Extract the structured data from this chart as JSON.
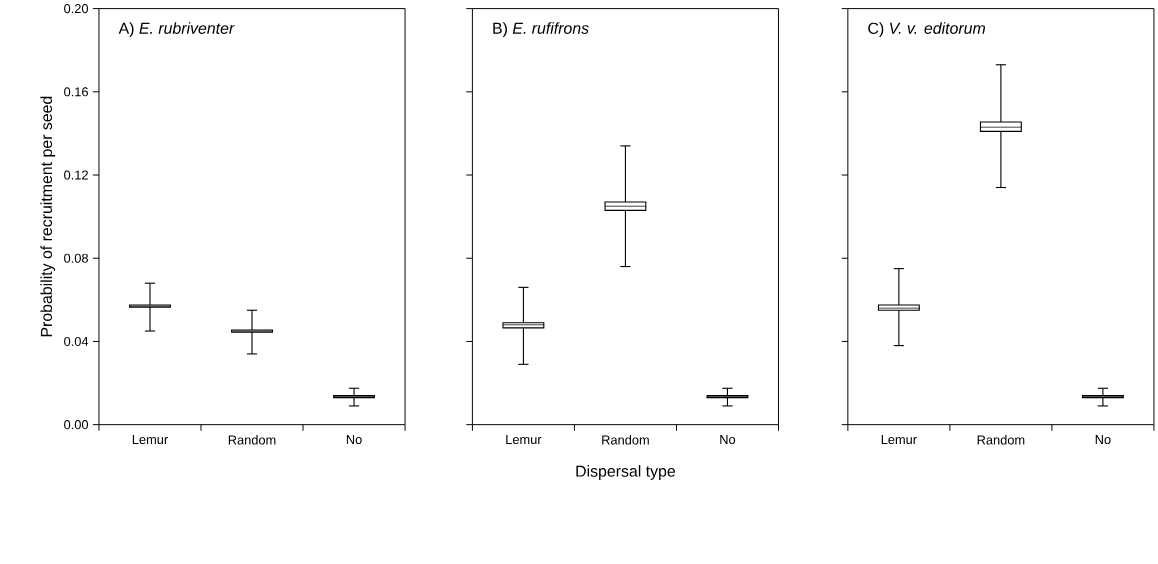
{
  "chart_data": [
    {
      "type": "box",
      "title": "A) *E. rubriventer*",
      "ylabel": "Probability of recruitment per seed",
      "categories": [
        "Lemur",
        "Random",
        "No"
      ],
      "boxes": [
        {
          "low": 0.045,
          "q1": 0.0565,
          "median": 0.057,
          "q3": 0.0575,
          "high": 0.068
        },
        {
          "low": 0.034,
          "q1": 0.0445,
          "median": 0.045,
          "q3": 0.0455,
          "high": 0.055
        },
        {
          "low": 0.009,
          "q1": 0.013,
          "median": 0.0135,
          "q3": 0.014,
          "high": 0.0175
        }
      ],
      "ylim": [
        0,
        0.2
      ],
      "yticks": [
        {
          "value": 0,
          "label": "0.00"
        },
        {
          "value": 0.04,
          "label": "0.04"
        },
        {
          "value": 0.08,
          "label": "0.08"
        },
        {
          "value": 0.12,
          "label": "0.12"
        },
        {
          "value": 0.16,
          "label": "0.16"
        },
        {
          "value": 0.2,
          "label": "0.20"
        }
      ]
    },
    {
      "type": "box",
      "title": "B) *E. rufifrons*",
      "xlabel": "Dispersal type",
      "categories": [
        "Lemur",
        "Random",
        "No"
      ],
      "boxes": [
        {
          "low": 0.029,
          "q1": 0.0465,
          "median": 0.048,
          "q3": 0.049,
          "high": 0.066
        },
        {
          "low": 0.076,
          "q1": 0.103,
          "median": 0.105,
          "q3": 0.107,
          "high": 0.134
        },
        {
          "low": 0.009,
          "q1": 0.013,
          "median": 0.0135,
          "q3": 0.014,
          "high": 0.0175
        }
      ],
      "ylim": [
        0,
        0.2
      ],
      "yticks": [
        {
          "value": 0,
          "label": null
        },
        {
          "value": 0.04,
          "label": null
        },
        {
          "value": 0.08,
          "label": null
        },
        {
          "value": 0.12,
          "label": null
        },
        {
          "value": 0.16,
          "label": null
        },
        {
          "value": 0.2,
          "label": null
        }
      ],
      "tick_labels": "x"
    },
    {
      "type": "box",
      "title": "C) *V. v. editorum*",
      "categories": [
        "Lemur",
        "Random",
        "No"
      ],
      "boxes": [
        {
          "low": 0.038,
          "q1": 0.055,
          "median": 0.056,
          "q3": 0.0575,
          "high": 0.075
        },
        {
          "low": 0.114,
          "q1": 0.141,
          "median": 0.143,
          "q3": 0.1455,
          "high": 0.173
        },
        {
          "low": 0.009,
          "q1": 0.013,
          "median": 0.0135,
          "q3": 0.014,
          "high": 0.0175
        }
      ],
      "ylim": [
        0,
        0.2
      ],
      "yticks": [
        {
          "value": 0,
          "label": null
        },
        {
          "value": 0.04,
          "label": null
        },
        {
          "value": 0.08,
          "label": null
        },
        {
          "value": 0.12,
          "label": null
        },
        {
          "value": 0.16,
          "label": null
        },
        {
          "value": 0.2,
          "label": null
        }
      ],
      "tick_labels": "x"
    }
  ]
}
